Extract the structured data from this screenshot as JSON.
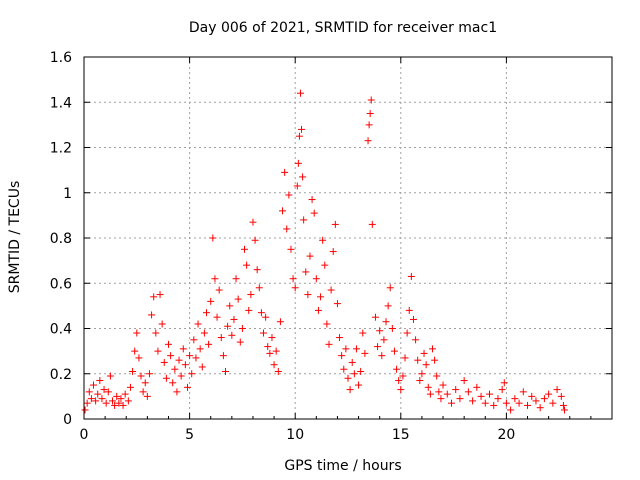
{
  "chart_data": {
    "type": "scatter",
    "title": "Day 006 of 2021, SRMTID for receiver mac1",
    "xlabel": "GPS time / hours",
    "ylabel": "SRMTID / TECUs",
    "xlim": [
      0,
      25
    ],
    "ylim": [
      0,
      1.6
    ],
    "xticks": [
      0,
      5,
      10,
      15,
      20
    ],
    "xtick_labels": [
      "0",
      "5",
      "10",
      "15",
      "20"
    ],
    "yticks": [
      0,
      0.2,
      0.4,
      0.6,
      0.8,
      1,
      1.2,
      1.4,
      1.6
    ],
    "ytick_labels": [
      "0",
      "0.2",
      "0.4",
      "0.6",
      "0.8",
      "1",
      "1.2",
      "1.4",
      "1.6"
    ],
    "grid": true,
    "marker": "+",
    "series": [
      {
        "name": "SRMTID",
        "color": "#ff0000",
        "points": [
          [
            0.05,
            0.04
          ],
          [
            0.15,
            0.07
          ],
          [
            0.25,
            0.12
          ],
          [
            0.35,
            0.09
          ],
          [
            0.45,
            0.15
          ],
          [
            0.55,
            0.08
          ],
          [
            0.65,
            0.11
          ],
          [
            0.75,
            0.17
          ],
          [
            0.85,
            0.09
          ],
          [
            0.95,
            0.13
          ],
          [
            1.05,
            0.07
          ],
          [
            1.15,
            0.12
          ],
          [
            1.25,
            0.19
          ],
          [
            1.35,
            0.08
          ],
          [
            1.45,
            0.06
          ],
          [
            1.55,
            0.1
          ],
          [
            1.65,
            0.07
          ],
          [
            1.75,
            0.09
          ],
          [
            1.85,
            0.06
          ],
          [
            1.95,
            0.11
          ],
          [
            2.1,
            0.08
          ],
          [
            2.2,
            0.14
          ],
          [
            2.3,
            0.21
          ],
          [
            2.4,
            0.3
          ],
          [
            2.5,
            0.38
          ],
          [
            2.6,
            0.27
          ],
          [
            2.7,
            0.19
          ],
          [
            2.8,
            0.12
          ],
          [
            2.9,
            0.16
          ],
          [
            3.0,
            0.1
          ],
          [
            3.1,
            0.2
          ],
          [
            3.2,
            0.46
          ],
          [
            3.3,
            0.54
          ],
          [
            3.4,
            0.38
          ],
          [
            3.5,
            0.3
          ],
          [
            3.6,
            0.55
          ],
          [
            3.7,
            0.42
          ],
          [
            3.8,
            0.25
          ],
          [
            3.9,
            0.18
          ],
          [
            4.0,
            0.33
          ],
          [
            4.1,
            0.28
          ],
          [
            4.2,
            0.16
          ],
          [
            4.3,
            0.22
          ],
          [
            4.4,
            0.12
          ],
          [
            4.5,
            0.26
          ],
          [
            4.6,
            0.19
          ],
          [
            4.7,
            0.31
          ],
          [
            4.8,
            0.24
          ],
          [
            4.9,
            0.14
          ],
          [
            5.0,
            0.28
          ],
          [
            5.1,
            0.2
          ],
          [
            5.2,
            0.35
          ],
          [
            5.3,
            0.27
          ],
          [
            5.4,
            0.42
          ],
          [
            5.5,
            0.31
          ],
          [
            5.6,
            0.23
          ],
          [
            5.7,
            0.38
          ],
          [
            5.8,
            0.47
          ],
          [
            5.9,
            0.33
          ],
          [
            6.0,
            0.52
          ],
          [
            6.1,
            0.8
          ],
          [
            6.2,
            0.62
          ],
          [
            6.3,
            0.45
          ],
          [
            6.4,
            0.57
          ],
          [
            6.5,
            0.36
          ],
          [
            6.6,
            0.28
          ],
          [
            6.7,
            0.21
          ],
          [
            6.8,
            0.41
          ],
          [
            6.9,
            0.5
          ],
          [
            7.0,
            0.37
          ],
          [
            7.1,
            0.44
          ],
          [
            7.2,
            0.62
          ],
          [
            7.3,
            0.53
          ],
          [
            7.4,
            0.34
          ],
          [
            7.5,
            0.4
          ],
          [
            7.6,
            0.75
          ],
          [
            7.7,
            0.68
          ],
          [
            7.8,
            0.48
          ],
          [
            7.9,
            0.55
          ],
          [
            8.0,
            0.87
          ],
          [
            8.1,
            0.79
          ],
          [
            8.2,
            0.66
          ],
          [
            8.3,
            0.58
          ],
          [
            8.4,
            0.47
          ],
          [
            8.5,
            0.38
          ],
          [
            8.6,
            0.45
          ],
          [
            8.7,
            0.32
          ],
          [
            8.8,
            0.29
          ],
          [
            8.9,
            0.36
          ],
          [
            9.0,
            0.24
          ],
          [
            9.1,
            0.3
          ],
          [
            9.2,
            0.21
          ],
          [
            9.3,
            0.43
          ],
          [
            9.4,
            0.92
          ],
          [
            9.5,
            1.09
          ],
          [
            9.6,
            0.84
          ],
          [
            9.7,
            0.99
          ],
          [
            9.8,
            0.75
          ],
          [
            9.9,
            0.62
          ],
          [
            10.0,
            0.58
          ],
          [
            10.1,
            1.03
          ],
          [
            10.15,
            1.13
          ],
          [
            10.2,
            1.25
          ],
          [
            10.25,
            1.44
          ],
          [
            10.3,
            1.28
          ],
          [
            10.35,
            1.07
          ],
          [
            10.4,
            0.88
          ],
          [
            10.5,
            0.65
          ],
          [
            10.6,
            0.55
          ],
          [
            10.7,
            0.72
          ],
          [
            10.8,
            0.97
          ],
          [
            10.9,
            0.91
          ],
          [
            11.0,
            0.62
          ],
          [
            11.1,
            0.48
          ],
          [
            11.2,
            0.54
          ],
          [
            11.3,
            0.79
          ],
          [
            11.4,
            0.68
          ],
          [
            11.5,
            0.42
          ],
          [
            11.6,
            0.33
          ],
          [
            11.7,
            0.57
          ],
          [
            11.8,
            0.74
          ],
          [
            11.9,
            0.86
          ],
          [
            12.0,
            0.51
          ],
          [
            12.1,
            0.36
          ],
          [
            12.2,
            0.28
          ],
          [
            12.3,
            0.22
          ],
          [
            12.4,
            0.31
          ],
          [
            12.5,
            0.18
          ],
          [
            12.6,
            0.13
          ],
          [
            12.7,
            0.25
          ],
          [
            12.8,
            0.2
          ],
          [
            12.9,
            0.31
          ],
          [
            13.0,
            0.15
          ],
          [
            13.1,
            0.21
          ],
          [
            13.2,
            0.38
          ],
          [
            13.3,
            0.29
          ],
          [
            13.45,
            1.23
          ],
          [
            13.5,
            1.3
          ],
          [
            13.55,
            1.35
          ],
          [
            13.6,
            1.41
          ],
          [
            13.65,
            0.86
          ],
          [
            13.8,
            0.45
          ],
          [
            13.9,
            0.32
          ],
          [
            14.0,
            0.39
          ],
          [
            14.1,
            0.28
          ],
          [
            14.2,
            0.35
          ],
          [
            14.3,
            0.43
          ],
          [
            14.4,
            0.5
          ],
          [
            14.5,
            0.58
          ],
          [
            14.6,
            0.4
          ],
          [
            14.7,
            0.3
          ],
          [
            14.8,
            0.22
          ],
          [
            14.9,
            0.17
          ],
          [
            15.0,
            0.13
          ],
          [
            15.1,
            0.19
          ],
          [
            15.2,
            0.27
          ],
          [
            15.3,
            0.38
          ],
          [
            15.4,
            0.48
          ],
          [
            15.5,
            0.63
          ],
          [
            15.6,
            0.44
          ],
          [
            15.7,
            0.35
          ],
          [
            15.8,
            0.26
          ],
          [
            15.9,
            0.17
          ],
          [
            16.0,
            0.2
          ],
          [
            16.1,
            0.29
          ],
          [
            16.2,
            0.24
          ],
          [
            16.3,
            0.14
          ],
          [
            16.4,
            0.11
          ],
          [
            16.5,
            0.31
          ],
          [
            16.6,
            0.26
          ],
          [
            16.7,
            0.19
          ],
          [
            16.8,
            0.12
          ],
          [
            16.9,
            0.09
          ],
          [
            17.0,
            0.15
          ],
          [
            17.2,
            0.11
          ],
          [
            17.4,
            0.07
          ],
          [
            17.6,
            0.13
          ],
          [
            17.8,
            0.09
          ],
          [
            18.0,
            0.17
          ],
          [
            18.2,
            0.12
          ],
          [
            18.4,
            0.08
          ],
          [
            18.6,
            0.14
          ],
          [
            18.8,
            0.1
          ],
          [
            19.0,
            0.07
          ],
          [
            19.2,
            0.11
          ],
          [
            19.4,
            0.06
          ],
          [
            19.6,
            0.09
          ],
          [
            19.8,
            0.13
          ],
          [
            19.9,
            0.16
          ],
          [
            20.0,
            0.07
          ],
          [
            20.2,
            0.04
          ],
          [
            20.4,
            0.09
          ],
          [
            20.6,
            0.07
          ],
          [
            20.8,
            0.12
          ],
          [
            21.0,
            0.06
          ],
          [
            21.2,
            0.1
          ],
          [
            21.4,
            0.08
          ],
          [
            21.6,
            0.05
          ],
          [
            21.8,
            0.09
          ],
          [
            22.0,
            0.11
          ],
          [
            22.2,
            0.07
          ],
          [
            22.4,
            0.13
          ],
          [
            22.6,
            0.1
          ],
          [
            22.7,
            0.06
          ],
          [
            22.75,
            0.04
          ]
        ]
      }
    ]
  }
}
